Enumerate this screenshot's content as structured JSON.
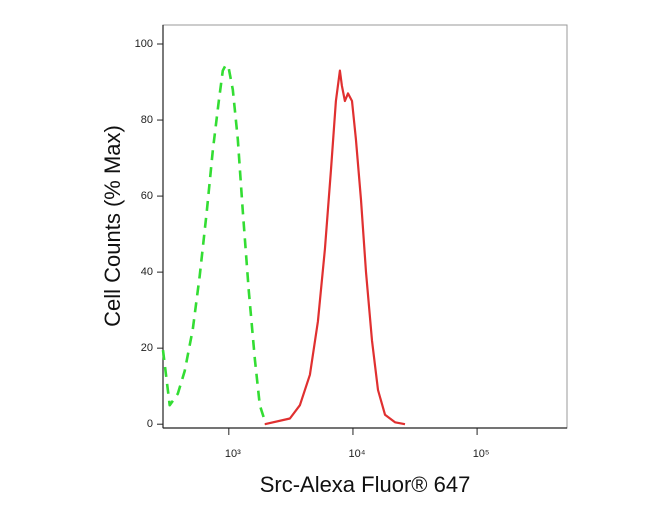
{
  "chart_data": {
    "type": "line",
    "x_label": "Src-Alexa Fluor® 647",
    "y_label": "Cell Counts (% Max)",
    "xscale": "log",
    "xlim": [
      295,
      530000
    ],
    "xticks": [
      {
        "value": 1000,
        "label": "10³"
      },
      {
        "value": 10000,
        "label": "10⁴"
      },
      {
        "value": 100000,
        "label": "10⁵"
      }
    ],
    "ylim": [
      -1,
      105
    ],
    "yticks": [
      0,
      20,
      40,
      60,
      80,
      100
    ],
    "series": [
      {
        "color": "#33dd33",
        "dashed": true,
        "x": [
          295,
          334,
          388,
          441,
          513,
          583,
          665,
          743,
          830,
          895,
          946,
          1000,
          1077,
          1182,
          1297,
          1450,
          1621,
          1778,
          1988
        ],
        "values": [
          19.5,
          5,
          8,
          14,
          25,
          39,
          56,
          72,
          85,
          93,
          94.5,
          93.5,
          88,
          75,
          56,
          35,
          17,
          5,
          0
        ]
      },
      {
        "color": "#e03030",
        "dashed": false,
        "x": [
          1950,
          3105,
          3740,
          4500,
          5220,
          5940,
          6650,
          7290,
          7850,
          8150,
          8610,
          9120,
          9820,
          10570,
          11600,
          12730,
          14230,
          15920,
          18120,
          21830,
          26260
        ],
        "values": [
          0,
          1.5,
          5,
          13,
          27,
          46,
          67,
          85,
          93,
          89,
          85,
          87,
          85,
          75,
          59,
          40,
          22,
          9,
          2.5,
          0.5,
          0
        ]
      }
    ]
  }
}
